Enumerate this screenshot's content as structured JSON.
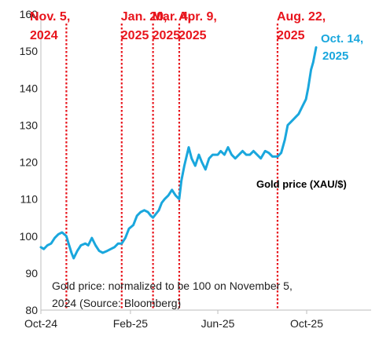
{
  "chart_data": {
    "type": "line",
    "xlabel": "",
    "ylabel": "",
    "ylim": [
      80,
      160
    ],
    "y_ticks": [
      80,
      90,
      100,
      110,
      120,
      130,
      140,
      150,
      160
    ],
    "x_ticks": [
      {
        "date": "2024-10-01",
        "label": "Oct-24"
      },
      {
        "date": "2025-02-01",
        "label": "Feb-25"
      },
      {
        "date": "2025-06-01",
        "label": "Jun-25"
      },
      {
        "date": "2025-10-01",
        "label": "Oct-25"
      }
    ],
    "grid": false,
    "series": [
      {
        "name": "Gold price (XAU/$)",
        "color": "#1aa7dd",
        "points": [
          [
            "2024-10-01",
            97
          ],
          [
            "2024-10-05",
            96.5
          ],
          [
            "2024-10-10",
            97.5
          ],
          [
            "2024-10-15",
            98
          ],
          [
            "2024-10-20",
            99.5
          ],
          [
            "2024-10-25",
            100.5
          ],
          [
            "2024-10-30",
            101
          ],
          [
            "2024-11-05",
            100
          ],
          [
            "2024-11-08",
            98
          ],
          [
            "2024-11-12",
            95.5
          ],
          [
            "2024-11-15",
            94
          ],
          [
            "2024-11-20",
            96
          ],
          [
            "2024-11-25",
            97.5
          ],
          [
            "2024-12-01",
            98
          ],
          [
            "2024-12-05",
            97.5
          ],
          [
            "2024-12-10",
            99.5
          ],
          [
            "2024-12-15",
            97.5
          ],
          [
            "2024-12-20",
            96
          ],
          [
            "2024-12-25",
            95.5
          ],
          [
            "2024-12-31",
            96
          ],
          [
            "2025-01-05",
            96.5
          ],
          [
            "2025-01-10",
            97
          ],
          [
            "2025-01-15",
            98
          ],
          [
            "2025-01-20",
            98
          ],
          [
            "2025-01-25",
            99.5
          ],
          [
            "2025-01-30",
            102
          ],
          [
            "2025-02-05",
            103
          ],
          [
            "2025-02-10",
            105.5
          ],
          [
            "2025-02-15",
            106.5
          ],
          [
            "2025-02-20",
            107
          ],
          [
            "2025-02-25",
            106.5
          ],
          [
            "2025-03-01",
            105.5
          ],
          [
            "2025-03-04",
            105
          ],
          [
            "2025-03-08",
            106
          ],
          [
            "2025-03-12",
            107
          ],
          [
            "2025-03-16",
            109
          ],
          [
            "2025-03-20",
            110
          ],
          [
            "2025-03-25",
            111
          ],
          [
            "2025-03-30",
            112.5
          ],
          [
            "2025-04-04",
            111
          ],
          [
            "2025-04-09",
            110
          ],
          [
            "2025-04-12",
            115
          ],
          [
            "2025-04-16",
            119
          ],
          [
            "2025-04-22",
            124
          ],
          [
            "2025-04-26",
            121
          ],
          [
            "2025-05-01",
            119
          ],
          [
            "2025-05-06",
            122
          ],
          [
            "2025-05-10",
            120
          ],
          [
            "2025-05-15",
            118
          ],
          [
            "2025-05-20",
            121
          ],
          [
            "2025-05-25",
            122
          ],
          [
            "2025-06-01",
            122
          ],
          [
            "2025-06-05",
            123
          ],
          [
            "2025-06-10",
            122
          ],
          [
            "2025-06-15",
            124
          ],
          [
            "2025-06-20",
            122
          ],
          [
            "2025-06-25",
            121
          ],
          [
            "2025-06-30",
            122
          ],
          [
            "2025-07-05",
            123
          ],
          [
            "2025-07-10",
            122
          ],
          [
            "2025-07-15",
            122
          ],
          [
            "2025-07-20",
            123
          ],
          [
            "2025-07-25",
            122
          ],
          [
            "2025-07-30",
            121
          ],
          [
            "2025-08-05",
            123
          ],
          [
            "2025-08-10",
            122.5
          ],
          [
            "2025-08-15",
            121.5
          ],
          [
            "2025-08-22",
            121.5
          ],
          [
            "2025-08-27",
            122.5
          ],
          [
            "2025-09-01",
            126
          ],
          [
            "2025-09-05",
            130
          ],
          [
            "2025-09-10",
            131
          ],
          [
            "2025-09-15",
            132
          ],
          [
            "2025-09-20",
            133
          ],
          [
            "2025-09-25",
            135
          ],
          [
            "2025-09-30",
            137
          ],
          [
            "2025-10-03",
            140
          ],
          [
            "2025-10-07",
            145
          ],
          [
            "2025-10-10",
            147
          ],
          [
            "2025-10-14",
            151
          ]
        ]
      }
    ],
    "events": [
      {
        "date": "2024-11-05",
        "label_line1": "Nov. 5,",
        "label_line2": "2024"
      },
      {
        "date": "2025-01-20",
        "label_line1": "Jan. 20,",
        "label_line2": "2025"
      },
      {
        "date": "2025-03-04",
        "label_line1": "Mar. 4,",
        "label_line2": "2025"
      },
      {
        "date": "2025-04-09",
        "label_line1": "Apr. 9,",
        "label_line2": "2025"
      },
      {
        "date": "2025-08-22",
        "label_line1": "Aug. 22,",
        "label_line2": "2025"
      }
    ],
    "event_color": "#e8141c",
    "end_label": {
      "line1": "Oct. 14,",
      "line2": "2025"
    },
    "series_label": "Gold price (XAU/$)",
    "note": {
      "line1": "Gold price: normalized to be 100 on November 5,",
      "line2": "2024 (Source: Bloomberg)"
    }
  }
}
